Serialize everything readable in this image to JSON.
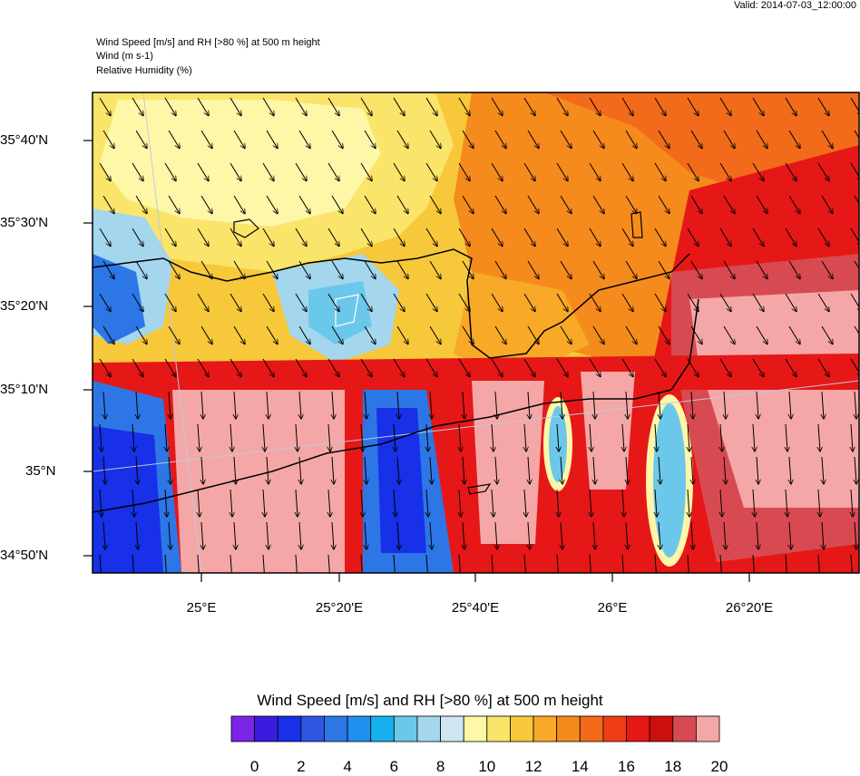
{
  "header": {
    "valid": "Valid: 2014-07-03_12:00:00",
    "line1": "Wind Speed [m/s] and RH [>80 %] at 500 m height",
    "line2": "Wind   (m s-1)",
    "line3": "Relative Humidity   (%)"
  },
  "axes": {
    "lat_labels": [
      "35°40'N",
      "35°30'N",
      "35°20'N",
      "35°10'N",
      "35°N",
      "34°50'N"
    ],
    "lon_labels": [
      "25°E",
      "25°20'E",
      "25°40'E",
      "26°E",
      "26°20'E"
    ]
  },
  "colorbar": {
    "title": "Wind Speed [m/s] and RH [>80 %] at 500 m height",
    "ticks": [
      "0",
      "2",
      "4",
      "6",
      "8",
      "10",
      "12",
      "14",
      "16",
      "18",
      "20"
    ],
    "colors": [
      "#7b25e6",
      "#3a1ce0",
      "#1730e8",
      "#2f55e3",
      "#2d76e6",
      "#2090ee",
      "#17b0ef",
      "#6cc8ea",
      "#a4d6ee",
      "#cfe6f2",
      "#fff7a8",
      "#fbe46a",
      "#f7c83a",
      "#f7a927",
      "#f58b1c",
      "#f26b1b",
      "#ef3d17",
      "#e61717",
      "#cc1010",
      "#d84a52",
      "#f5a7a7"
    ]
  },
  "map": {
    "colors": {
      "lightpink": "#f5a7a7",
      "red": "#e61717",
      "darkred": "#cc1010",
      "orange": "#f58b1c",
      "amber": "#f7a927",
      "gold": "#f7c83a",
      "lightyellow": "#fff7a8",
      "paleblue": "#cfe6f2",
      "lightblue": "#a4d6ee",
      "blue": "#2d76e6",
      "darkblue": "#1730e8"
    },
    "wind_direction": "from NNW to SSE",
    "coastline_color": "#000000",
    "grid_color": "#c0c8d8"
  }
}
